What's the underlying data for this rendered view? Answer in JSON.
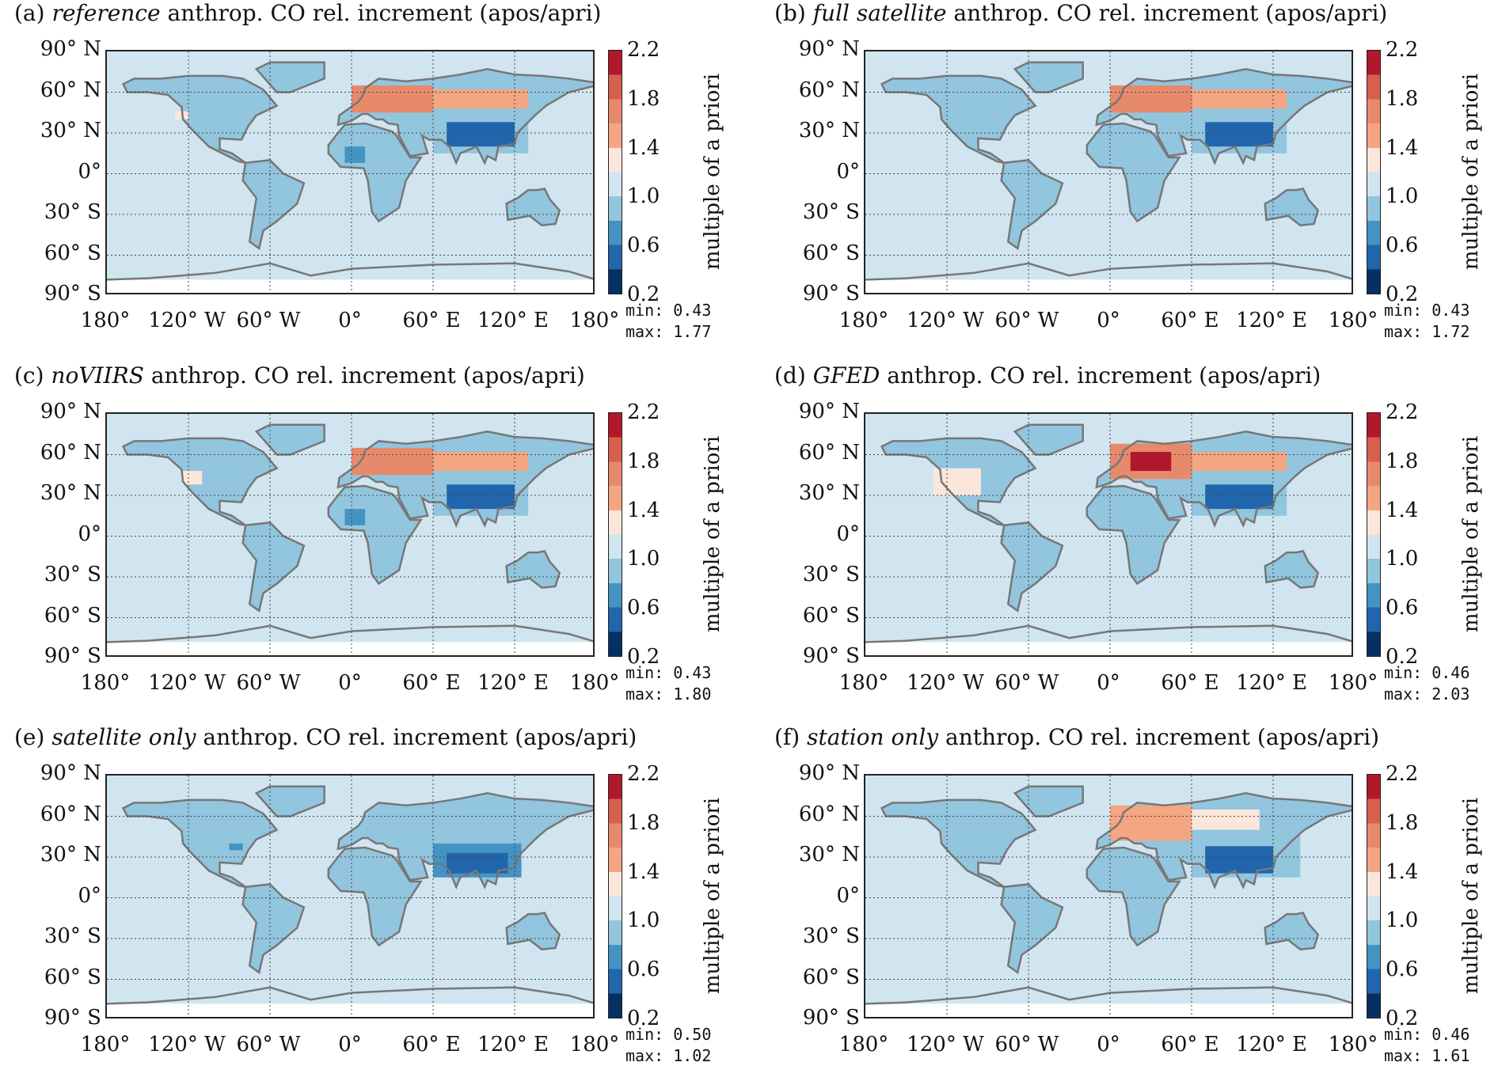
{
  "colorbar": {
    "label": "multiple of a priori",
    "ticks": [
      "2.2",
      "1.8",
      "1.4",
      "1.0",
      "0.6",
      "0.2"
    ],
    "levels": [
      0.2,
      0.4,
      0.6,
      0.8,
      1.0,
      1.2,
      1.4,
      1.6,
      1.8,
      2.0,
      2.2
    ],
    "colors": [
      "#053061",
      "#2166ac",
      "#4393c3",
      "#92c5de",
      "#d1e5f0",
      "#fbe6dc",
      "#f4a582",
      "#e78a6c",
      "#d6604d",
      "#b2182b",
      "#67001f"
    ]
  },
  "lat_labels": [
    "90° N",
    "60° N",
    "30° N",
    "0°",
    "30° S",
    "60° S",
    "90° S"
  ],
  "lon_labels": [
    "180°",
    "120° W",
    "60° W",
    "0°",
    "60° E",
    "120° E",
    "180°"
  ],
  "common_title": "anthrop. CO rel. increment (apos/apri)",
  "min_label": "min:",
  "max_label": "max:",
  "panels": [
    {
      "tag": "(a)",
      "name": "reference",
      "min": "0.43",
      "max": "1.77",
      "land": 0.9,
      "regions": [
        [
          0,
          60,
          45,
          65,
          1.7
        ],
        [
          60,
          130,
          48,
          62,
          1.5
        ],
        [
          60,
          130,
          15,
          45,
          0.8
        ],
        [
          70,
          120,
          20,
          38,
          0.55
        ],
        [
          -5,
          10,
          8,
          20,
          0.7
        ],
        [
          -130,
          -120,
          40,
          46,
          1.3
        ]
      ]
    },
    {
      "tag": "(b)",
      "name": "full satellite",
      "min": "0.43",
      "max": "1.72",
      "land": 0.9,
      "regions": [
        [
          0,
          60,
          45,
          65,
          1.7
        ],
        [
          60,
          130,
          48,
          62,
          1.5
        ],
        [
          60,
          130,
          15,
          45,
          0.8
        ],
        [
          70,
          120,
          20,
          38,
          0.55
        ],
        [
          -5,
          15,
          5,
          20,
          0.8
        ]
      ]
    },
    {
      "tag": "(c)",
      "name": "noVIIRS",
      "min": "0.43",
      "max": "1.80",
      "land": 0.9,
      "regions": [
        [
          0,
          60,
          45,
          65,
          1.7
        ],
        [
          60,
          130,
          48,
          62,
          1.5
        ],
        [
          60,
          130,
          15,
          45,
          0.8
        ],
        [
          70,
          120,
          20,
          38,
          0.55
        ],
        [
          -5,
          10,
          8,
          20,
          0.7
        ],
        [
          -125,
          -110,
          38,
          48,
          1.3
        ]
      ]
    },
    {
      "tag": "(d)",
      "name": "GFED",
      "min": "0.46",
      "max": "2.03",
      "land": 0.9,
      "regions": [
        [
          -130,
          -95,
          30,
          50,
          1.3
        ],
        [
          0,
          60,
          42,
          68,
          1.7
        ],
        [
          15,
          45,
          48,
          62,
          2.05
        ],
        [
          60,
          130,
          48,
          62,
          1.5
        ],
        [
          60,
          130,
          15,
          45,
          0.8
        ],
        [
          70,
          120,
          20,
          38,
          0.55
        ]
      ]
    },
    {
      "tag": "(e)",
      "name": "satellite only",
      "min": "0.50",
      "max": "1.02",
      "land": 0.9,
      "regions": [
        [
          60,
          125,
          15,
          40,
          0.7
        ],
        [
          70,
          115,
          18,
          33,
          0.55
        ],
        [
          -90,
          -80,
          35,
          40,
          0.7
        ]
      ]
    },
    {
      "tag": "(f)",
      "name": "station only",
      "min": "0.46",
      "max": "1.61",
      "land": 0.9,
      "regions": [
        [
          0,
          60,
          42,
          68,
          1.5
        ],
        [
          60,
          110,
          50,
          65,
          1.3
        ],
        [
          60,
          140,
          15,
          50,
          0.8
        ],
        [
          70,
          120,
          18,
          38,
          0.55
        ]
      ]
    }
  ]
}
